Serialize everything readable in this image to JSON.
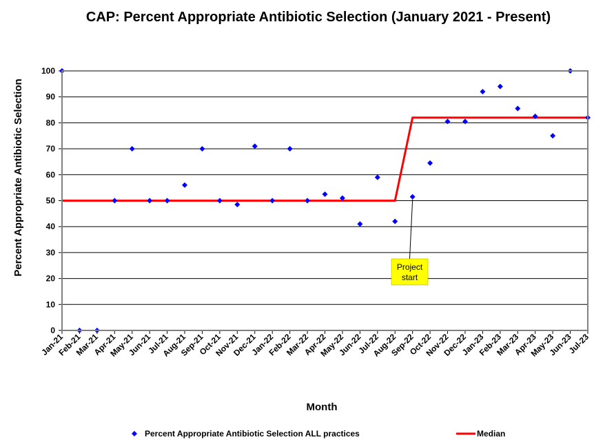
{
  "chart_data": {
    "type": "scatter",
    "title": "CAP: Percent Appropriate Antibiotic Selection (January 2021 - Present)",
    "xlabel": "Month",
    "ylabel": "Percent Appropriate Antibiotic Selection",
    "ylim": [
      0,
      100
    ],
    "yticks": [
      "0",
      "10",
      "20",
      "30",
      "40",
      "50",
      "60",
      "70",
      "80",
      "90",
      "100"
    ],
    "grid": true,
    "legend_position": "bottom",
    "categories": [
      "Jan-21",
      "Feb-21",
      "Mar-21",
      "Apr-21",
      "May-21",
      "Jun-21",
      "Jul-21",
      "Aug-21",
      "Sep-21",
      "Oct-21",
      "Nov-21",
      "Dec-21",
      "Jan-22",
      "Feb-22",
      "Mar-22",
      "Apr-22",
      "May-22",
      "Jun-22",
      "Jul-22",
      "Aug-22",
      "Sep-22",
      "Oct-22",
      "Nov-22",
      "Dec-22",
      "Jan-23",
      "Feb-23",
      "Mar-23",
      "Apr-23",
      "May-23",
      "Jun-23",
      "Jul-23"
    ],
    "series": [
      {
        "name": "Percent Appropriate Antibiotic Selection ALL practices",
        "type": "scatter",
        "color": "#0000ff",
        "values": [
          100,
          0,
          0,
          50,
          70,
          50,
          50,
          56,
          70,
          50,
          48.5,
          71,
          50,
          70,
          50,
          52.5,
          51,
          41,
          59,
          42,
          51.5,
          64.5,
          80.5,
          80.5,
          92,
          94,
          85.5,
          82.5,
          75,
          100,
          82
        ]
      },
      {
        "name": "Median",
        "type": "line",
        "color": "#ff0000",
        "values": [
          50,
          50,
          50,
          50,
          50,
          50,
          50,
          50,
          50,
          50,
          50,
          50,
          50,
          50,
          50,
          50,
          50,
          50,
          50,
          50,
          82,
          82,
          82,
          82,
          82,
          82,
          82,
          82,
          82,
          82,
          82
        ]
      }
    ],
    "annotations": [
      {
        "text_line1": "Project",
        "text_line2": "start",
        "category": "Sep-22",
        "value": 51.5,
        "color": "#ffff00"
      }
    ]
  }
}
